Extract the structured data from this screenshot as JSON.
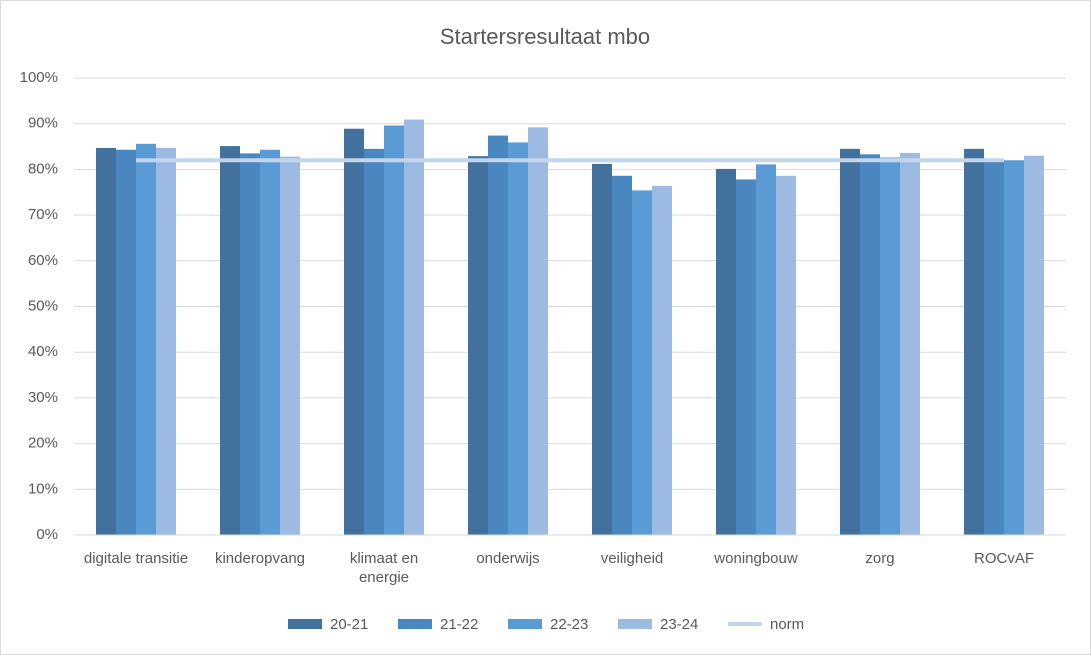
{
  "chart_data": {
    "type": "bar",
    "title": "Startersresultaat mbo",
    "categories": [
      "digitale transitie",
      "kinderopvang",
      "klimaat en energie",
      "onderwijs",
      "veiligheid",
      "woningbouw",
      "zorg",
      "ROCvAF"
    ],
    "series": [
      {
        "name": "20-21",
        "color": "#41719c",
        "values": [
          84.7,
          85.1,
          88.9,
          82.9,
          81.2,
          80.1,
          84.5,
          84.5
        ]
      },
      {
        "name": "21-22",
        "color": "#4a86bf",
        "values": [
          84.3,
          83.5,
          84.5,
          87.4,
          78.6,
          77.8,
          83.3,
          82.2
        ]
      },
      {
        "name": "22-23",
        "color": "#5b9bd5",
        "values": [
          85.6,
          84.3,
          89.6,
          85.9,
          75.4,
          81.1,
          82.6,
          82.0
        ]
      },
      {
        "name": "23-24",
        "color": "#9dbbe2",
        "values": [
          84.7,
          82.8,
          90.9,
          89.2,
          76.4,
          78.6,
          83.6,
          83.0
        ]
      },
      {
        "name": "norm",
        "color": "#c2d5ec",
        "type": "line",
        "values": [
          82,
          82,
          82,
          82,
          82,
          82,
          82,
          82
        ]
      }
    ],
    "ylim": [
      0,
      100
    ],
    "yticks": [
      {
        "value": 0,
        "label": "0%"
      },
      {
        "value": 10,
        "label": "10%"
      },
      {
        "value": 20,
        "label": "20%"
      },
      {
        "value": 30,
        "label": "30%"
      },
      {
        "value": 40,
        "label": "40%"
      },
      {
        "value": 50,
        "label": "50%"
      },
      {
        "value": 60,
        "label": "60%"
      },
      {
        "value": 70,
        "label": "70%"
      },
      {
        "value": 80,
        "label": "80%"
      },
      {
        "value": 90,
        "label": "90%"
      },
      {
        "value": 100,
        "label": "100%"
      }
    ],
    "grid": true,
    "legend": "bottom"
  }
}
